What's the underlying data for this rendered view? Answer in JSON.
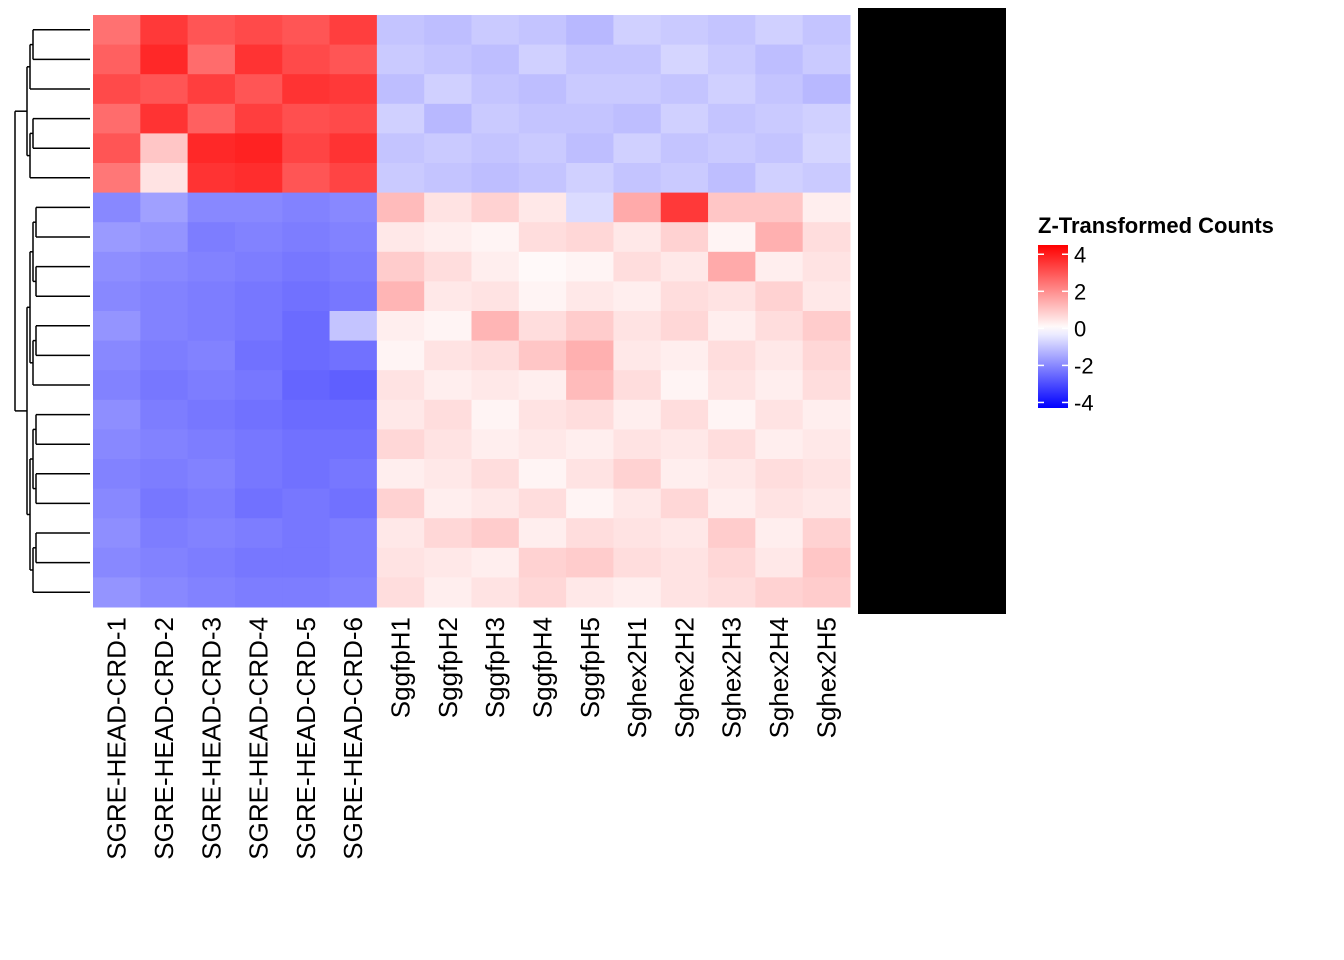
{
  "chart_data": {
    "type": "heatmap",
    "columns": [
      "SGRE-HEAD-CRD-1",
      "SGRE-HEAD-CRD-2",
      "SGRE-HEAD-CRD-3",
      "SGRE-HEAD-CRD-4",
      "SGRE-HEAD-CRD-5",
      "SGRE-HEAD-CRD-6",
      "SggfpH1",
      "SggfpH2",
      "SggfpH3",
      "SggfpH4",
      "SggfpH5",
      "Sghex2H1",
      "Sghex2H2",
      "Sghex2H3",
      "Sghex2H4",
      "Sghex2H5"
    ],
    "values": [
      [
        2.5,
        3.5,
        3.0,
        3.2,
        3.0,
        3.4,
        -1,
        -1.1,
        -0.9,
        -1,
        -1.2,
        -0.8,
        -0.9,
        -1,
        -0.8,
        -1
      ],
      [
        2.8,
        3.8,
        2.6,
        3.6,
        3.2,
        3.0,
        -0.9,
        -1,
        -1.1,
        -0.8,
        -1,
        -1,
        -0.7,
        -0.9,
        -1.1,
        -0.9
      ],
      [
        3.2,
        3.0,
        3.4,
        3.0,
        3.6,
        3.5,
        -1.1,
        -0.8,
        -1,
        -1.1,
        -0.9,
        -0.9,
        -1,
        -0.8,
        -1,
        -1.2
      ],
      [
        2.6,
        3.6,
        2.8,
        3.4,
        3.1,
        3.2,
        -0.8,
        -1.2,
        -0.9,
        -1,
        -1,
        -1.1,
        -0.8,
        -1,
        -0.9,
        -0.8
      ],
      [
        3.0,
        1.0,
        3.8,
        3.9,
        3.3,
        3.6,
        -1,
        -0.9,
        -1,
        -0.9,
        -1.1,
        -0.8,
        -1,
        -0.9,
        -1,
        -0.7
      ],
      [
        2.4,
        0.5,
        3.6,
        3.7,
        3.0,
        3.3,
        -0.9,
        -1,
        -1.1,
        -1,
        -0.8,
        -1,
        -0.9,
        -1.1,
        -0.8,
        -0.9
      ],
      [
        -2,
        -1.6,
        -2,
        -2,
        -2.1,
        -2,
        1.2,
        0.5,
        0.8,
        0.4,
        -0.6,
        1.5,
        3.5,
        1.0,
        1.0,
        0.3
      ],
      [
        -1.7,
        -1.8,
        -2.2,
        -2.1,
        -2.2,
        -2.1,
        0.4,
        0.3,
        0.2,
        0.6,
        0.7,
        0.4,
        0.8,
        0.2,
        1.4,
        0.6
      ],
      [
        -1.9,
        -2,
        -2.1,
        -2.2,
        -2.3,
        -2.2,
        0.9,
        0.6,
        0.3,
        0.1,
        0.2,
        0.6,
        0.4,
        1.5,
        0.3,
        0.5
      ],
      [
        -2,
        -2.1,
        -2.2,
        -2.3,
        -2.4,
        -2.3,
        1.3,
        0.4,
        0.5,
        0.2,
        0.4,
        0.3,
        0.6,
        0.5,
        0.8,
        0.4
      ],
      [
        -1.8,
        -2.1,
        -2.2,
        -2.3,
        -2.5,
        -1.0,
        0.3,
        0.2,
        1.3,
        0.6,
        0.9,
        0.5,
        0.7,
        0.3,
        0.6,
        0.9
      ],
      [
        -2,
        -2.2,
        -2.1,
        -2.4,
        -2.5,
        -2.4,
        0.2,
        0.5,
        0.6,
        1.0,
        1.4,
        0.4,
        0.3,
        0.6,
        0.4,
        0.7
      ],
      [
        -2.1,
        -2.3,
        -2.2,
        -2.3,
        -2.6,
        -2.7,
        0.5,
        0.3,
        0.4,
        0.3,
        1.2,
        0.6,
        0.2,
        0.5,
        0.3,
        0.6
      ],
      [
        -1.9,
        -2.2,
        -2.3,
        -2.4,
        -2.5,
        -2.5,
        0.4,
        0.6,
        0.2,
        0.5,
        0.6,
        0.3,
        0.6,
        0.2,
        0.5,
        0.3
      ],
      [
        -2,
        -2.1,
        -2.2,
        -2.3,
        -2.4,
        -2.4,
        0.7,
        0.5,
        0.3,
        0.4,
        0.3,
        0.5,
        0.4,
        0.6,
        0.3,
        0.4
      ],
      [
        -2.1,
        -2.2,
        -2.1,
        -2.3,
        -2.4,
        -2.3,
        0.3,
        0.4,
        0.6,
        0.2,
        0.5,
        0.8,
        0.3,
        0.4,
        0.6,
        0.5
      ],
      [
        -2,
        -2.3,
        -2.2,
        -2.4,
        -2.3,
        -2.4,
        0.8,
        0.3,
        0.4,
        0.6,
        0.2,
        0.4,
        0.7,
        0.3,
        0.5,
        0.4
      ],
      [
        -1.9,
        -2.2,
        -2.1,
        -2.2,
        -2.3,
        -2.2,
        0.4,
        0.7,
        0.9,
        0.3,
        0.6,
        0.5,
        0.4,
        0.9,
        0.3,
        0.8
      ],
      [
        -2,
        -2.1,
        -2.2,
        -2.3,
        -2.3,
        -2.2,
        0.5,
        0.4,
        0.3,
        0.8,
        0.9,
        0.6,
        0.5,
        0.7,
        0.4,
        1.0
      ],
      [
        -1.8,
        -2,
        -2.1,
        -2.2,
        -2.2,
        -2.1,
        0.6,
        0.3,
        0.5,
        0.7,
        0.4,
        0.3,
        0.5,
        0.6,
        0.8,
        0.9
      ]
    ],
    "legend_title": "Z-Transformed Counts",
    "clim": [
      -4.3,
      4.5
    ],
    "cticks": [
      4,
      2,
      0,
      -2,
      -4
    ],
    "colors": {
      "low": "#0000ff",
      "mid": "#ffffff",
      "high": "#ff0000"
    }
  }
}
